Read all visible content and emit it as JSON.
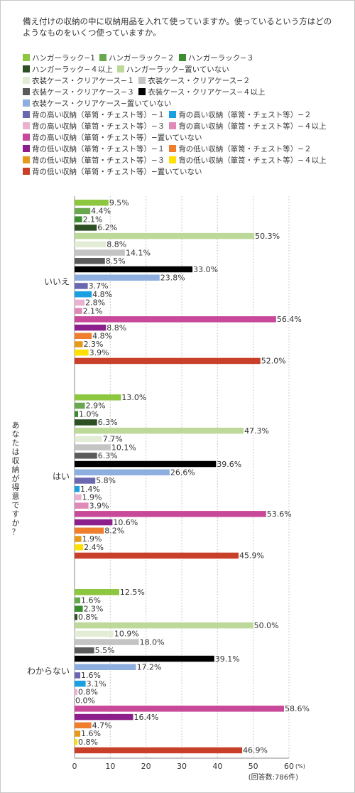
{
  "question": "備え付けの収納の中に収納用品を入れて使っていますか。使っているという方はどのようなものをいくつ使っていますか。",
  "legend_rows": [
    [
      0,
      1,
      2
    ],
    [
      3,
      4
    ],
    [
      5,
      6
    ],
    [
      7,
      8
    ],
    [
      9
    ],
    [
      10,
      11
    ],
    [
      12,
      13
    ],
    [
      14
    ],
    [
      15,
      16
    ],
    [
      17,
      18
    ],
    [
      19
    ]
  ],
  "chart_data": {
    "type": "bar",
    "orientation": "horizontal",
    "categories": [
      "いいえ",
      "はい",
      "わからない"
    ],
    "ylabel": "あなたは収納が得意ですか？",
    "xlim": [
      0,
      60
    ],
    "xticks": [
      0,
      10,
      20,
      30,
      40,
      50,
      60
    ],
    "unit": "(%)",
    "note": "(回答数:786件)",
    "grid": true,
    "value_suffix": "%",
    "series": [
      {
        "name": "ハンガーラック−1",
        "color": "#8dc63f",
        "values": [
          9.5,
          13.0,
          12.5
        ]
      },
      {
        "name": "ハンガーラック−２",
        "color": "#6aa84f",
        "values": [
          4.4,
          2.9,
          1.6
        ]
      },
      {
        "name": "ハンガーラック−３",
        "color": "#3c8d2f",
        "values": [
          2.1,
          1.0,
          2.3
        ]
      },
      {
        "name": "ハンガーラック−４以上",
        "color": "#2e4e24",
        "values": [
          6.2,
          6.3,
          0.8
        ]
      },
      {
        "name": "ハンガーラック−置いていない",
        "color": "#bcd99a",
        "values": [
          50.3,
          47.3,
          50.0
        ]
      },
      {
        "name": "衣装ケース・クリアケース−１",
        "color": "#e3ecd4",
        "values": [
          8.8,
          7.7,
          10.9
        ]
      },
      {
        "name": "衣装ケース・クリアケース−２",
        "color": "#c4c4c4",
        "values": [
          14.1,
          10.1,
          18.0
        ]
      },
      {
        "name": "衣装ケース・クリアケース−３",
        "color": "#5b5b5b",
        "values": [
          8.5,
          6.3,
          5.5
        ]
      },
      {
        "name": "衣装ケース・クリアケース−４以上",
        "color": "#000000",
        "values": [
          33.0,
          39.6,
          39.1
        ]
      },
      {
        "name": "衣装ケース・クリアケース−置いていない",
        "color": "#8eaee0",
        "values": [
          23.8,
          26.6,
          17.2
        ]
      },
      {
        "name": "背の高い収納（箪笥・チェスト等）−１",
        "color": "#6c68b0",
        "values": [
          3.7,
          5.8,
          1.6
        ]
      },
      {
        "name": "背の高い収納（箪笥・チェスト等）−２",
        "color": "#1aa0e0",
        "values": [
          4.8,
          1.4,
          3.1
        ]
      },
      {
        "name": "背の高い収納（箪笥・チェスト等）−３",
        "color": "#e9b3d0",
        "values": [
          2.8,
          1.9,
          0.8
        ]
      },
      {
        "name": "背の高い収納（箪笥・チェスト等）−４以上",
        "color": "#e08ab8",
        "values": [
          2.1,
          3.9,
          0.0
        ]
      },
      {
        "name": "背の高い収納（箪笥・チェスト等）−置いていない",
        "color": "#c8489a",
        "values": [
          56.4,
          53.6,
          58.6
        ]
      },
      {
        "name": "背の低い収納（箪笥・チェスト等）−１",
        "color": "#8c1f8c",
        "values": [
          8.8,
          10.6,
          16.4
        ]
      },
      {
        "name": "背の低い収納（箪笥・チェスト等）−２",
        "color": "#ef7f2f",
        "values": [
          4.8,
          8.2,
          4.7
        ]
      },
      {
        "name": "背の低い収納（箪笥・チェスト等）−３",
        "color": "#e69a1a",
        "values": [
          2.3,
          1.9,
          1.6
        ]
      },
      {
        "name": "背の低い収納（箪笥・チェスト等）−４以上",
        "color": "#ffe000",
        "values": [
          3.9,
          2.4,
          0.8
        ]
      },
      {
        "name": "背の低い収納（箪笥・チェスト等）−置いていない",
        "color": "#c8402a",
        "values": [
          52.0,
          45.9,
          46.9
        ]
      }
    ]
  }
}
